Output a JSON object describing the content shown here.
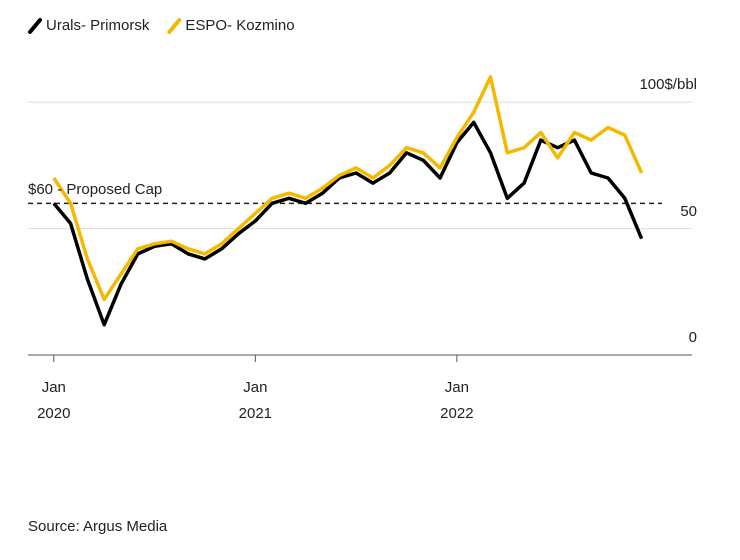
{
  "chart_data": {
    "type": "line",
    "legend": "top-left",
    "x": [
      "2020-01",
      "2020-02",
      "2020-03",
      "2020-04",
      "2020-05",
      "2020-06",
      "2020-07",
      "2020-08",
      "2020-09",
      "2020-10",
      "2020-11",
      "2020-12",
      "2021-01",
      "2021-02",
      "2021-03",
      "2021-04",
      "2021-05",
      "2021-06",
      "2021-07",
      "2021-08",
      "2021-09",
      "2021-10",
      "2021-11",
      "2021-12",
      "2022-01",
      "2022-02",
      "2022-03",
      "2022-04",
      "2022-05",
      "2022-06",
      "2022-07",
      "2022-08",
      "2022-09",
      "2022-10",
      "2022-11",
      "2022-12"
    ],
    "series": [
      {
        "name": "Urals- Primorsk",
        "color": "#000000",
        "values": [
          60,
          52,
          30,
          12,
          28,
          40,
          43,
          44,
          40,
          38,
          42,
          48,
          53,
          60,
          62,
          60,
          64,
          70,
          72,
          68,
          72,
          80,
          77,
          70,
          84,
          92,
          80,
          62,
          68,
          85,
          82,
          85,
          72,
          70,
          62,
          46
        ]
      },
      {
        "name": "ESPO- Kozmino",
        "color": "#f5b800",
        "values": [
          70,
          60,
          38,
          22,
          32,
          42,
          44,
          45,
          42,
          40,
          44,
          50,
          56,
          62,
          64,
          62,
          66,
          71,
          74,
          70,
          75,
          82,
          80,
          74,
          86,
          96,
          110,
          80,
          82,
          88,
          78,
          88,
          85,
          90,
          87,
          72
        ]
      }
    ],
    "xlim": [
      "2019-12",
      "2023-03"
    ],
    "xticks": [
      {
        "value": "2020-01",
        "label": "Jan 2020"
      },
      {
        "value": "2021-01",
        "label": "Jan 2021"
      },
      {
        "value": "2022-01",
        "label": "Jan 2022"
      }
    ],
    "ylim": [
      0,
      125
    ],
    "yticks": [
      0,
      50,
      {
        "value": 100,
        "label": "100$/bbl"
      }
    ],
    "grid": true,
    "reference_line": {
      "value": 60,
      "label": "$60 - Proposed Cap"
    },
    "source": "Source: Argus Media"
  }
}
